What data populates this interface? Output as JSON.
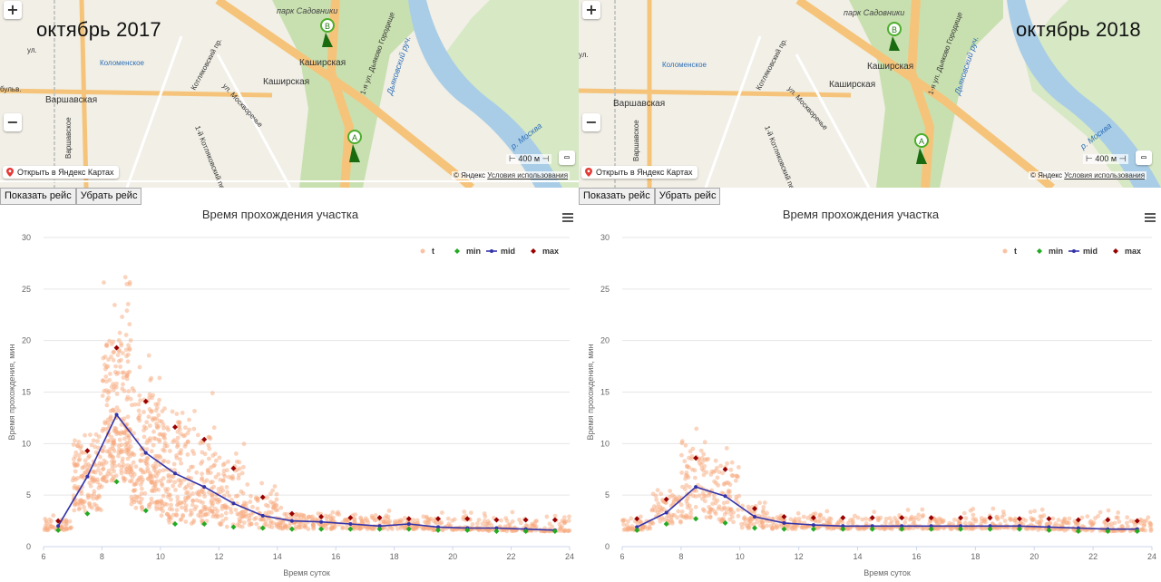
{
  "colors": {
    "scatter": "#f7a97e",
    "min": "#22aa22",
    "mid": "#3333aa",
    "max": "#990000",
    "road": "#f5c47a",
    "park": "#c8e0b0",
    "river": "#a9cde6"
  },
  "panels": [
    {
      "map": {
        "period": "октябрь 2017",
        "labels": {
          "park": "парк Садовники",
          "metro_kashirskaya_1": "Каширская",
          "metro_kashirskaya_2": "Каширская",
          "kolomenskoe": "Коломенское",
          "varshavskaya": "Варшавская",
          "varsh_sh": "Варшавское",
          "kotlyakovsky": "Котляковский пр.",
          "moskvorechye": "ул. Москворечье",
          "kotl2": "1-й Котляковский пер.",
          "dyakovo": "1-я ул. Дьяково Городище",
          "dyak_ruch": "Дьяковский руч.",
          "river": "р. Москва",
          "bulv": "бульв.",
          "ul": "ул."
        },
        "markers": {
          "a": "A",
          "b": "B"
        },
        "link": "Открыть в Яндекс Картах",
        "scale": "400 м",
        "copyright_prefix": "© Яндекс",
        "copyright_link": "Условия использования",
        "zoom_in": "+",
        "zoom_out": "−"
      },
      "buttons": {
        "show": "Показать рейс",
        "hide": "Убрать рейс"
      },
      "chart_data": {
        "type": "scatter",
        "title": "Время прохождения участка",
        "xlabel": "Время суток",
        "ylabel": "Время прохождения, мин",
        "xlim": [
          6,
          24
        ],
        "ylim": [
          0,
          30
        ],
        "xticks": [
          6,
          8,
          10,
          12,
          14,
          16,
          18,
          20,
          22,
          24
        ],
        "yticks": [
          0,
          5,
          10,
          15,
          20,
          25,
          30
        ],
        "legend": [
          "t",
          "min",
          "mid",
          "max"
        ],
        "legend_position": "top-right",
        "x": [
          6.5,
          7.5,
          8.5,
          9.5,
          10.5,
          11.5,
          12.5,
          13.5,
          14.5,
          15.5,
          16.5,
          17.5,
          18.5,
          19.5,
          20.5,
          21.5,
          22.5,
          23.5
        ],
        "min": [
          1.6,
          3.2,
          6.3,
          3.5,
          2.2,
          2.2,
          1.9,
          1.8,
          1.7,
          1.7,
          1.7,
          1.7,
          1.7,
          1.6,
          1.6,
          1.5,
          1.5,
          1.5
        ],
        "mid": [
          2.0,
          6.8,
          12.8,
          9.1,
          7.1,
          5.8,
          4.2,
          3.0,
          2.5,
          2.4,
          2.2,
          2.0,
          2.2,
          1.9,
          1.8,
          1.8,
          1.7,
          1.6
        ],
        "max": [
          2.5,
          9.3,
          19.3,
          14.1,
          11.6,
          10.4,
          7.6,
          4.8,
          3.2,
          2.9,
          2.8,
          2.8,
          2.7,
          2.7,
          2.7,
          2.6,
          2.6,
          2.6
        ]
      }
    },
    {
      "map": {
        "period": "октябрь 2018",
        "labels": {
          "park": "парк Садовники",
          "metro_kashirskaya_1": "Каширская",
          "metro_kashirskaya_2": "Каширская",
          "kolomenskoe": "Коломенское",
          "varshavskaya": "Варшавская",
          "varsh_sh": "Варшавское",
          "kotlyakovsky": "Котляковский пр.",
          "moskvorechye": "ул. Москворечье",
          "kotl2": "1-й Котляковский пер.",
          "dyakovo": "1-я ул. Дьяково Городище",
          "dyak_ruch": "Дьяковский руч.",
          "river": "р. Москва",
          "bulv": "бульв.",
          "ul": "ул."
        },
        "markers": {
          "a": "A",
          "b": "B"
        },
        "link": "Открыть в Яндекс Картах",
        "scale": "400 м",
        "copyright_prefix": "© Яндекс",
        "copyright_link": "Условия использования",
        "zoom_in": "+",
        "zoom_out": "−"
      },
      "buttons": {
        "show": "Показать рейс",
        "hide": "Убрать рейс"
      },
      "chart_data": {
        "type": "scatter",
        "title": "Время прохождения участка",
        "xlabel": "Время суток",
        "ylabel": "Время прохождения, мин",
        "xlim": [
          6,
          24
        ],
        "ylim": [
          0,
          30
        ],
        "xticks": [
          6,
          8,
          10,
          12,
          14,
          16,
          18,
          20,
          22,
          24
        ],
        "yticks": [
          0,
          5,
          10,
          15,
          20,
          25,
          30
        ],
        "legend": [
          "t",
          "min",
          "mid",
          "max"
        ],
        "legend_position": "top-right",
        "x": [
          6.5,
          7.5,
          8.5,
          9.5,
          10.5,
          11.5,
          12.5,
          13.5,
          14.5,
          15.5,
          16.5,
          17.5,
          18.5,
          19.5,
          20.5,
          21.5,
          22.5,
          23.5
        ],
        "min": [
          1.6,
          2.2,
          2.7,
          2.3,
          1.8,
          1.7,
          1.7,
          1.7,
          1.7,
          1.7,
          1.7,
          1.7,
          1.7,
          1.7,
          1.6,
          1.5,
          1.5,
          1.5
        ],
        "mid": [
          1.9,
          3.3,
          5.8,
          4.9,
          2.9,
          2.3,
          2.1,
          2.0,
          2.0,
          2.0,
          2.0,
          2.0,
          2.0,
          2.0,
          1.9,
          1.8,
          1.7,
          1.7
        ],
        "max": [
          2.7,
          4.6,
          8.6,
          7.5,
          3.7,
          2.9,
          2.8,
          2.8,
          2.8,
          2.8,
          2.8,
          2.8,
          2.8,
          2.7,
          2.7,
          2.6,
          2.6,
          2.5
        ]
      }
    }
  ]
}
